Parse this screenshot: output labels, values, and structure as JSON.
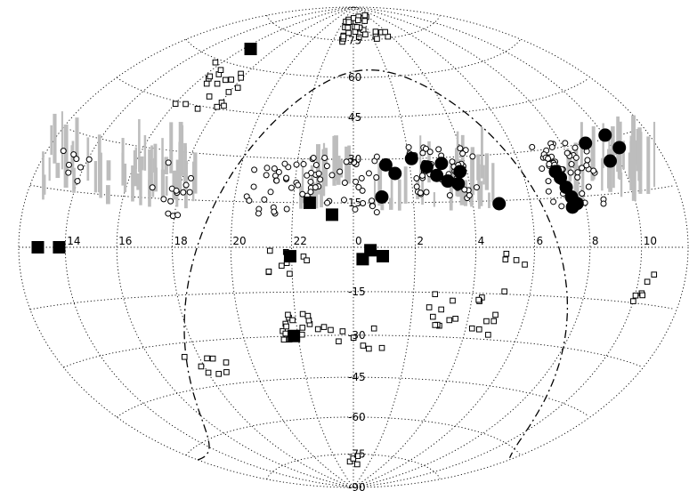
{
  "map": {
    "projection": "Hammer-Aitoff all-sky",
    "central_ra_hours": 0,
    "ra_labels": [
      "14",
      "16",
      "18",
      "20",
      "22",
      "0",
      "2",
      "4",
      "6",
      "8",
      "10"
    ],
    "dec_labels": [
      "75",
      "60",
      "45",
      "30",
      "15",
      "-15",
      "-30",
      "-45",
      "-60",
      "-75",
      "-90"
    ],
    "colors": {
      "markers": "#000000",
      "survey_strips": "#bdbdbd",
      "background": "#ffffff"
    }
  },
  "sources": {
    "filled_squares": [
      {
        "ra": 12.85,
        "dec": 0
      },
      {
        "ra": 13.75,
        "dec": 0
      },
      {
        "ra": 16.45,
        "dec": 66
      },
      {
        "ra": 22.55,
        "dec": 15
      },
      {
        "ra": 23.3,
        "dec": 11
      },
      {
        "ra": 21.95,
        "dec": -3
      },
      {
        "ra": 0.55,
        "dec": -1
      },
      {
        "ra": 0.95,
        "dec": -3
      },
      {
        "ra": 0.3,
        "dec": -4
      },
      {
        "ra": 21.85,
        "dec": -30
      }
    ],
    "filled_circles": [
      {
        "ra": 0.95,
        "dec": 17
      },
      {
        "ra": 1.15,
        "dec": 28
      },
      {
        "ra": 1.45,
        "dec": 25
      },
      {
        "ra": 2.1,
        "dec": 30
      },
      {
        "ra": 2.6,
        "dec": 27
      },
      {
        "ra": 2.9,
        "dec": 24
      },
      {
        "ra": 3.25,
        "dec": 22
      },
      {
        "ra": 3.15,
        "dec": 28
      },
      {
        "ra": 3.75,
        "dec": 25
      },
      {
        "ra": 3.6,
        "dec": 21
      },
      {
        "ra": 4.9,
        "dec": 14
      },
      {
        "ra": 7.25,
        "dec": 23
      },
      {
        "ra": 7.35,
        "dec": 21
      },
      {
        "ra": 7.45,
        "dec": 18
      },
      {
        "ra": 7.55,
        "dec": 15
      },
      {
        "ra": 7.5,
        "dec": 12
      },
      {
        "ra": 7.7,
        "dec": 13
      },
      {
        "ra": 9.0,
        "dec": 30
      },
      {
        "ra": 9.6,
        "dec": 24
      },
      {
        "ra": 10.05,
        "dec": 31
      },
      {
        "ra": 10.3,
        "dec": 27
      }
    ]
  }
}
